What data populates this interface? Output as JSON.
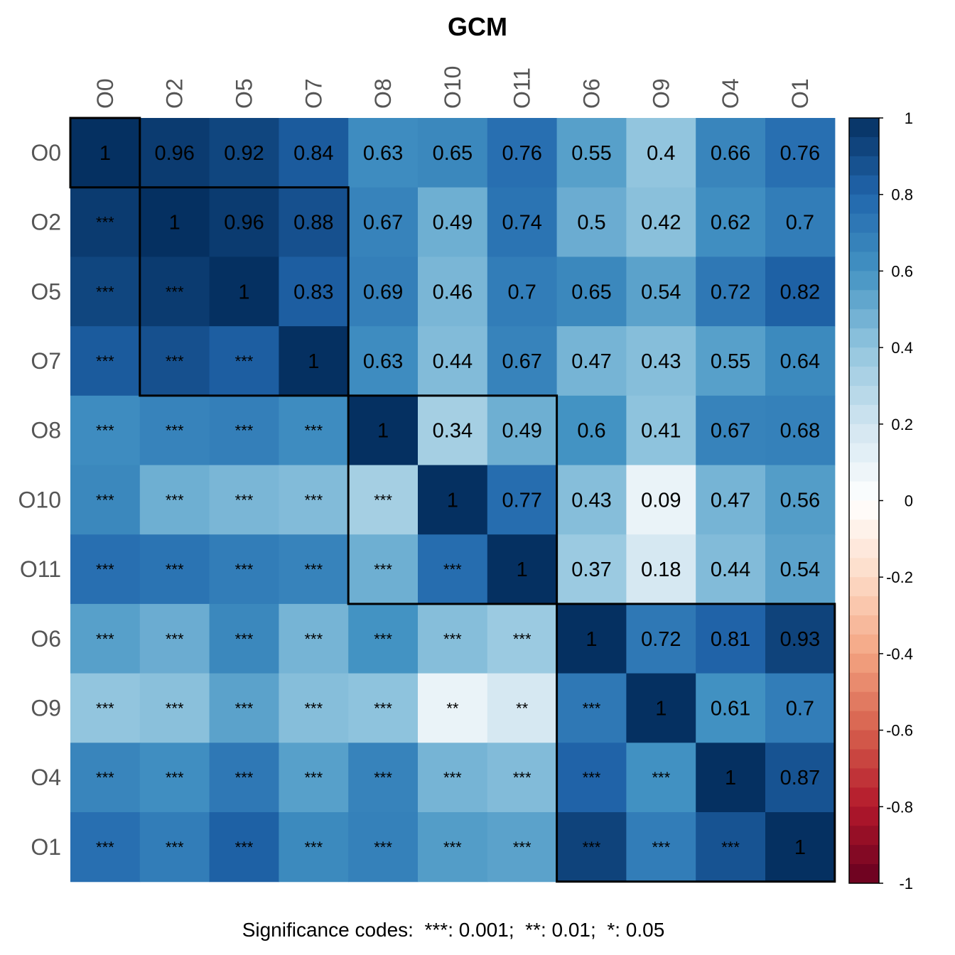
{
  "chart_data": {
    "type": "heatmap",
    "title": "GCM",
    "variables": [
      "O0",
      "O2",
      "O5",
      "O7",
      "O8",
      "O10",
      "O11",
      "O6",
      "O9",
      "O4",
      "O1"
    ],
    "matrix": [
      [
        1,
        0.96,
        0.92,
        0.84,
        0.63,
        0.65,
        0.76,
        0.55,
        0.4,
        0.66,
        0.76
      ],
      [
        0.96,
        1,
        0.96,
        0.88,
        0.67,
        0.49,
        0.74,
        0.5,
        0.42,
        0.62,
        0.7
      ],
      [
        0.92,
        0.96,
        1,
        0.83,
        0.69,
        0.46,
        0.7,
        0.65,
        0.54,
        0.72,
        0.82
      ],
      [
        0.84,
        0.88,
        0.83,
        1,
        0.63,
        0.44,
        0.67,
        0.47,
        0.43,
        0.55,
        0.64
      ],
      [
        0.63,
        0.67,
        0.69,
        0.63,
        1,
        0.34,
        0.49,
        0.6,
        0.41,
        0.67,
        0.68
      ],
      [
        0.65,
        0.49,
        0.46,
        0.44,
        0.34,
        1,
        0.77,
        0.43,
        0.09,
        0.47,
        0.56
      ],
      [
        0.76,
        0.74,
        0.7,
        0.67,
        0.49,
        0.77,
        1,
        0.37,
        0.18,
        0.44,
        0.54
      ],
      [
        0.55,
        0.5,
        0.65,
        0.47,
        0.6,
        0.43,
        0.37,
        1,
        0.72,
        0.81,
        0.93
      ],
      [
        0.4,
        0.42,
        0.54,
        0.43,
        0.41,
        0.09,
        0.18,
        0.72,
        1,
        0.61,
        0.7
      ],
      [
        0.66,
        0.62,
        0.72,
        0.55,
        0.67,
        0.47,
        0.44,
        0.81,
        0.61,
        1,
        0.87
      ],
      [
        0.76,
        0.7,
        0.82,
        0.64,
        0.68,
        0.56,
        0.54,
        0.93,
        0.7,
        0.87,
        1
      ]
    ],
    "upper_triangle": "coefficients",
    "lower_triangle": "significance stars",
    "significance": [
      [
        "",
        "",
        "",
        "",
        "",
        "",
        "",
        "",
        "",
        "",
        ""
      ],
      [
        "***",
        "",
        "",
        "",
        "",
        "",
        "",
        "",
        "",
        "",
        ""
      ],
      [
        "***",
        "***",
        "",
        "",
        "",
        "",
        "",
        "",
        "",
        "",
        ""
      ],
      [
        "***",
        "***",
        "***",
        "",
        "",
        "",
        "",
        "",
        "",
        "",
        ""
      ],
      [
        "***",
        "***",
        "***",
        "***",
        "",
        "",
        "",
        "",
        "",
        "",
        ""
      ],
      [
        "***",
        "***",
        "***",
        "***",
        "***",
        "",
        "",
        "",
        "",
        "",
        ""
      ],
      [
        "***",
        "***",
        "***",
        "***",
        "***",
        "***",
        "",
        "",
        "",
        "",
        ""
      ],
      [
        "***",
        "***",
        "***",
        "***",
        "***",
        "***",
        "***",
        "",
        "",
        "",
        ""
      ],
      [
        "***",
        "***",
        "***",
        "***",
        "***",
        "**",
        "**",
        "***",
        "",
        "",
        ""
      ],
      [
        "***",
        "***",
        "***",
        "***",
        "***",
        "***",
        "***",
        "***",
        "***",
        "",
        ""
      ],
      [
        "***",
        "***",
        "***",
        "***",
        "***",
        "***",
        "***",
        "***",
        "***",
        "***",
        ""
      ]
    ],
    "clusters": [
      {
        "from": "O0",
        "to": "O0"
      },
      {
        "from": "O2",
        "to": "O7"
      },
      {
        "from": "O8",
        "to": "O11"
      },
      {
        "from": "O6",
        "to": "O1"
      }
    ],
    "color_scale": {
      "range": [
        -1,
        1
      ],
      "ticks": [
        "1",
        "0.8",
        "0.6",
        "0.4",
        "0.2",
        "0",
        "-0.2",
        "-0.4",
        "-0.6",
        "-0.8",
        "-1"
      ],
      "tick_values": [
        1,
        0.8,
        0.6,
        0.4,
        0.2,
        0,
        -0.2,
        -0.4,
        -0.6,
        -0.8,
        -1
      ],
      "palette": [
        "#67001F",
        "#B2182B",
        "#D6604D",
        "#F4A582",
        "#FDDBC7",
        "#FFFFFF",
        "#D1E5F0",
        "#92C5DE",
        "#4393C3",
        "#2166AC",
        "#053061"
      ]
    },
    "legend_position": "right",
    "footnote": "Significance codes:  ***: 0.001;  **: 0.01;  *: 0.05"
  }
}
